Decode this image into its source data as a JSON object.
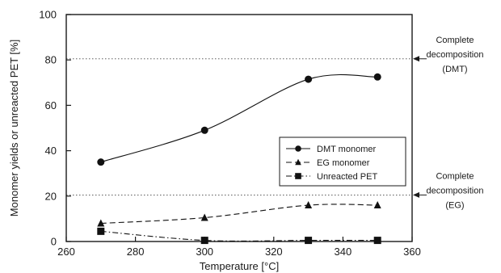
{
  "chart_data": {
    "type": "line",
    "xlabel": "Temperature [°C]",
    "ylabel": "Monomer yields or unreacted PET [%]",
    "xlim": [
      260,
      360
    ],
    "ylim": [
      0,
      100
    ],
    "xticks": [
      "260",
      "280",
      "300",
      "320",
      "340",
      "360"
    ],
    "yticks": [
      "0",
      "20",
      "40",
      "60",
      "80",
      "100"
    ],
    "grid": false,
    "legend_position": "center-right",
    "series": [
      {
        "name": "DMT  monomer",
        "marker": "circle",
        "line": "solid",
        "color": "#111111",
        "x": [
          270,
          300,
          330,
          350
        ],
        "y": [
          35,
          49,
          71.5,
          72.5
        ]
      },
      {
        "name": "EG  monomer",
        "marker": "triangle",
        "line": "dashed",
        "color": "#111111",
        "x": [
          270,
          300,
          330,
          350
        ],
        "y": [
          8,
          10.5,
          16,
          16
        ]
      },
      {
        "name": "Unreacted  PET",
        "marker": "square",
        "line": "dashdot",
        "color": "#111111",
        "x": [
          270,
          300,
          330,
          350
        ],
        "y": [
          4.5,
          0.5,
          0.5,
          0.5
        ]
      }
    ],
    "reference_lines": [
      {
        "y": 80.5,
        "label_lines": [
          "Complete",
          "decomposition",
          "(DMT)"
        ]
      },
      {
        "y": 20.5,
        "label_lines": [
          "Complete",
          "decomposition",
          "(EG)"
        ]
      }
    ]
  }
}
